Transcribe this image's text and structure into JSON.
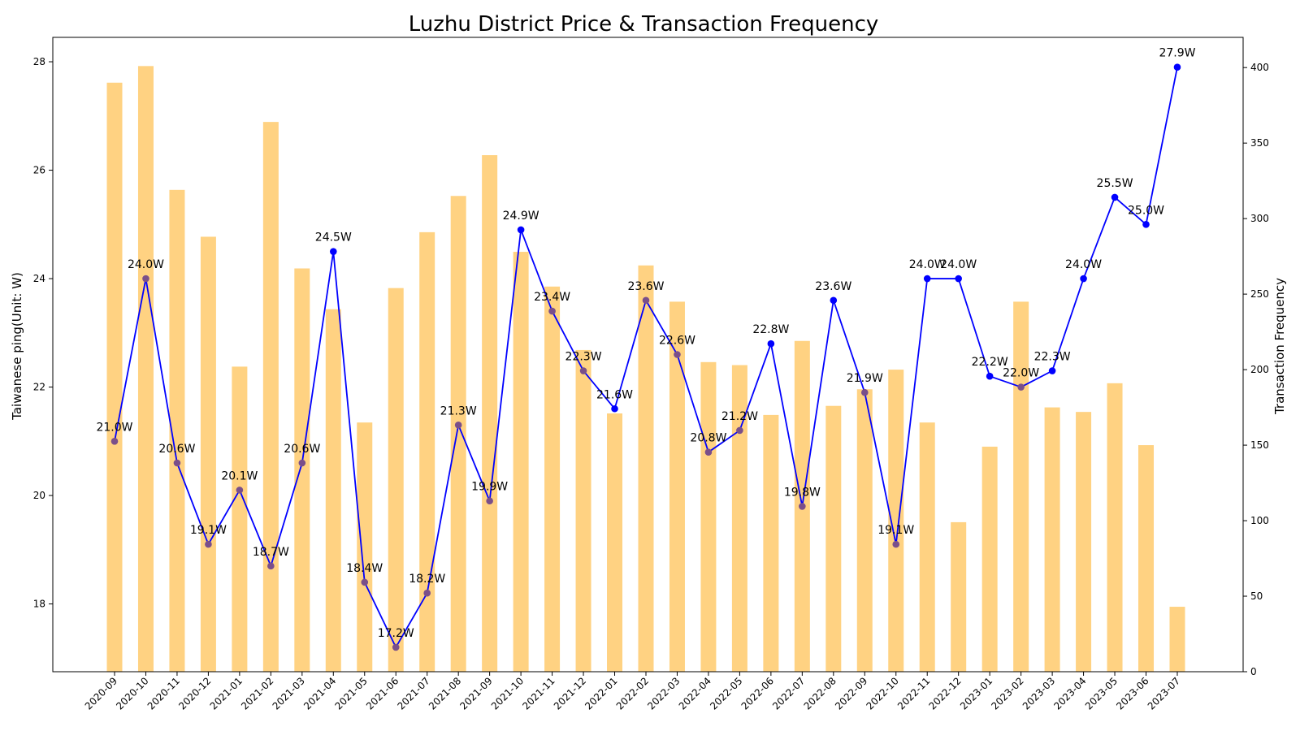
{
  "chart_data": {
    "type": "bar+line",
    "title": "Luzhu District Price & Transaction Frequency",
    "ylabel_left": "Taiwanese ping(Unit: W)",
    "ylabel_right": "Transaction Frequency",
    "xlabel": "",
    "ylim_left": [
      16.75,
      28.45
    ],
    "ylim_right": [
      0,
      420
    ],
    "yticks_left": [
      18,
      20,
      22,
      24,
      26,
      28
    ],
    "yticks_right": [
      0,
      50,
      100,
      150,
      200,
      250,
      300,
      350,
      400
    ],
    "grid": false,
    "categories": [
      "2020-09",
      "2020-10",
      "2020-11",
      "2020-12",
      "2021-01",
      "2021-02",
      "2021-03",
      "2021-04",
      "2021-05",
      "2021-06",
      "2021-07",
      "2021-08",
      "2021-09",
      "2021-10",
      "2021-11",
      "2021-12",
      "2022-01",
      "2022-02",
      "2022-03",
      "2022-04",
      "2022-05",
      "2022-06",
      "2022-07",
      "2022-08",
      "2022-09",
      "2022-10",
      "2022-11",
      "2022-12",
      "2023-01",
      "2023-02",
      "2023-03",
      "2023-04",
      "2023-05",
      "2023-06",
      "2023-07"
    ],
    "series": [
      {
        "kind": "bar",
        "axis": "right",
        "values": [
          390,
          401,
          319,
          288,
          202,
          364,
          267,
          240,
          165,
          254,
          291,
          315,
          342,
          278,
          255,
          213,
          171,
          269,
          245,
          205,
          203,
          170,
          219,
          176,
          187,
          200,
          165,
          99,
          149,
          245,
          175,
          172,
          191,
          150,
          43
        ]
      },
      {
        "kind": "line",
        "axis": "left",
        "values": [
          21.0,
          24.0,
          20.6,
          19.1,
          20.1,
          18.7,
          20.6,
          24.5,
          18.4,
          17.2,
          18.2,
          21.3,
          19.9,
          24.9,
          23.4,
          22.3,
          21.6,
          23.6,
          22.6,
          20.8,
          21.2,
          22.8,
          19.8,
          23.6,
          21.9,
          19.1,
          24.0,
          24.0,
          22.2,
          22.0,
          22.3,
          24.0,
          25.5,
          25.0,
          27.9
        ],
        "labels": [
          "21.0W",
          "24.0W",
          "20.6W",
          "19.1W",
          "20.1W",
          "18.7W",
          "20.6W",
          "24.5W",
          "18.4W",
          "17.2W",
          "18.2W",
          "21.3W",
          "19.9W",
          "24.9W",
          "23.4W",
          "22.3W",
          "21.6W",
          "23.6W",
          "22.6W",
          "20.8W",
          "21.2W",
          "22.8W",
          "19.8W",
          "23.6W",
          "21.9W",
          "19.1W",
          "24.0W",
          "24.0W",
          "22.2W",
          "22.0W",
          "22.3W",
          "24.0W",
          "25.5W",
          "25.0W",
          "27.9W"
        ]
      }
    ],
    "colors": {
      "bar": "#FFD282",
      "line": "#0000FF",
      "marker_over_bar": "#7A4F8A",
      "axis": "#000000"
    }
  }
}
